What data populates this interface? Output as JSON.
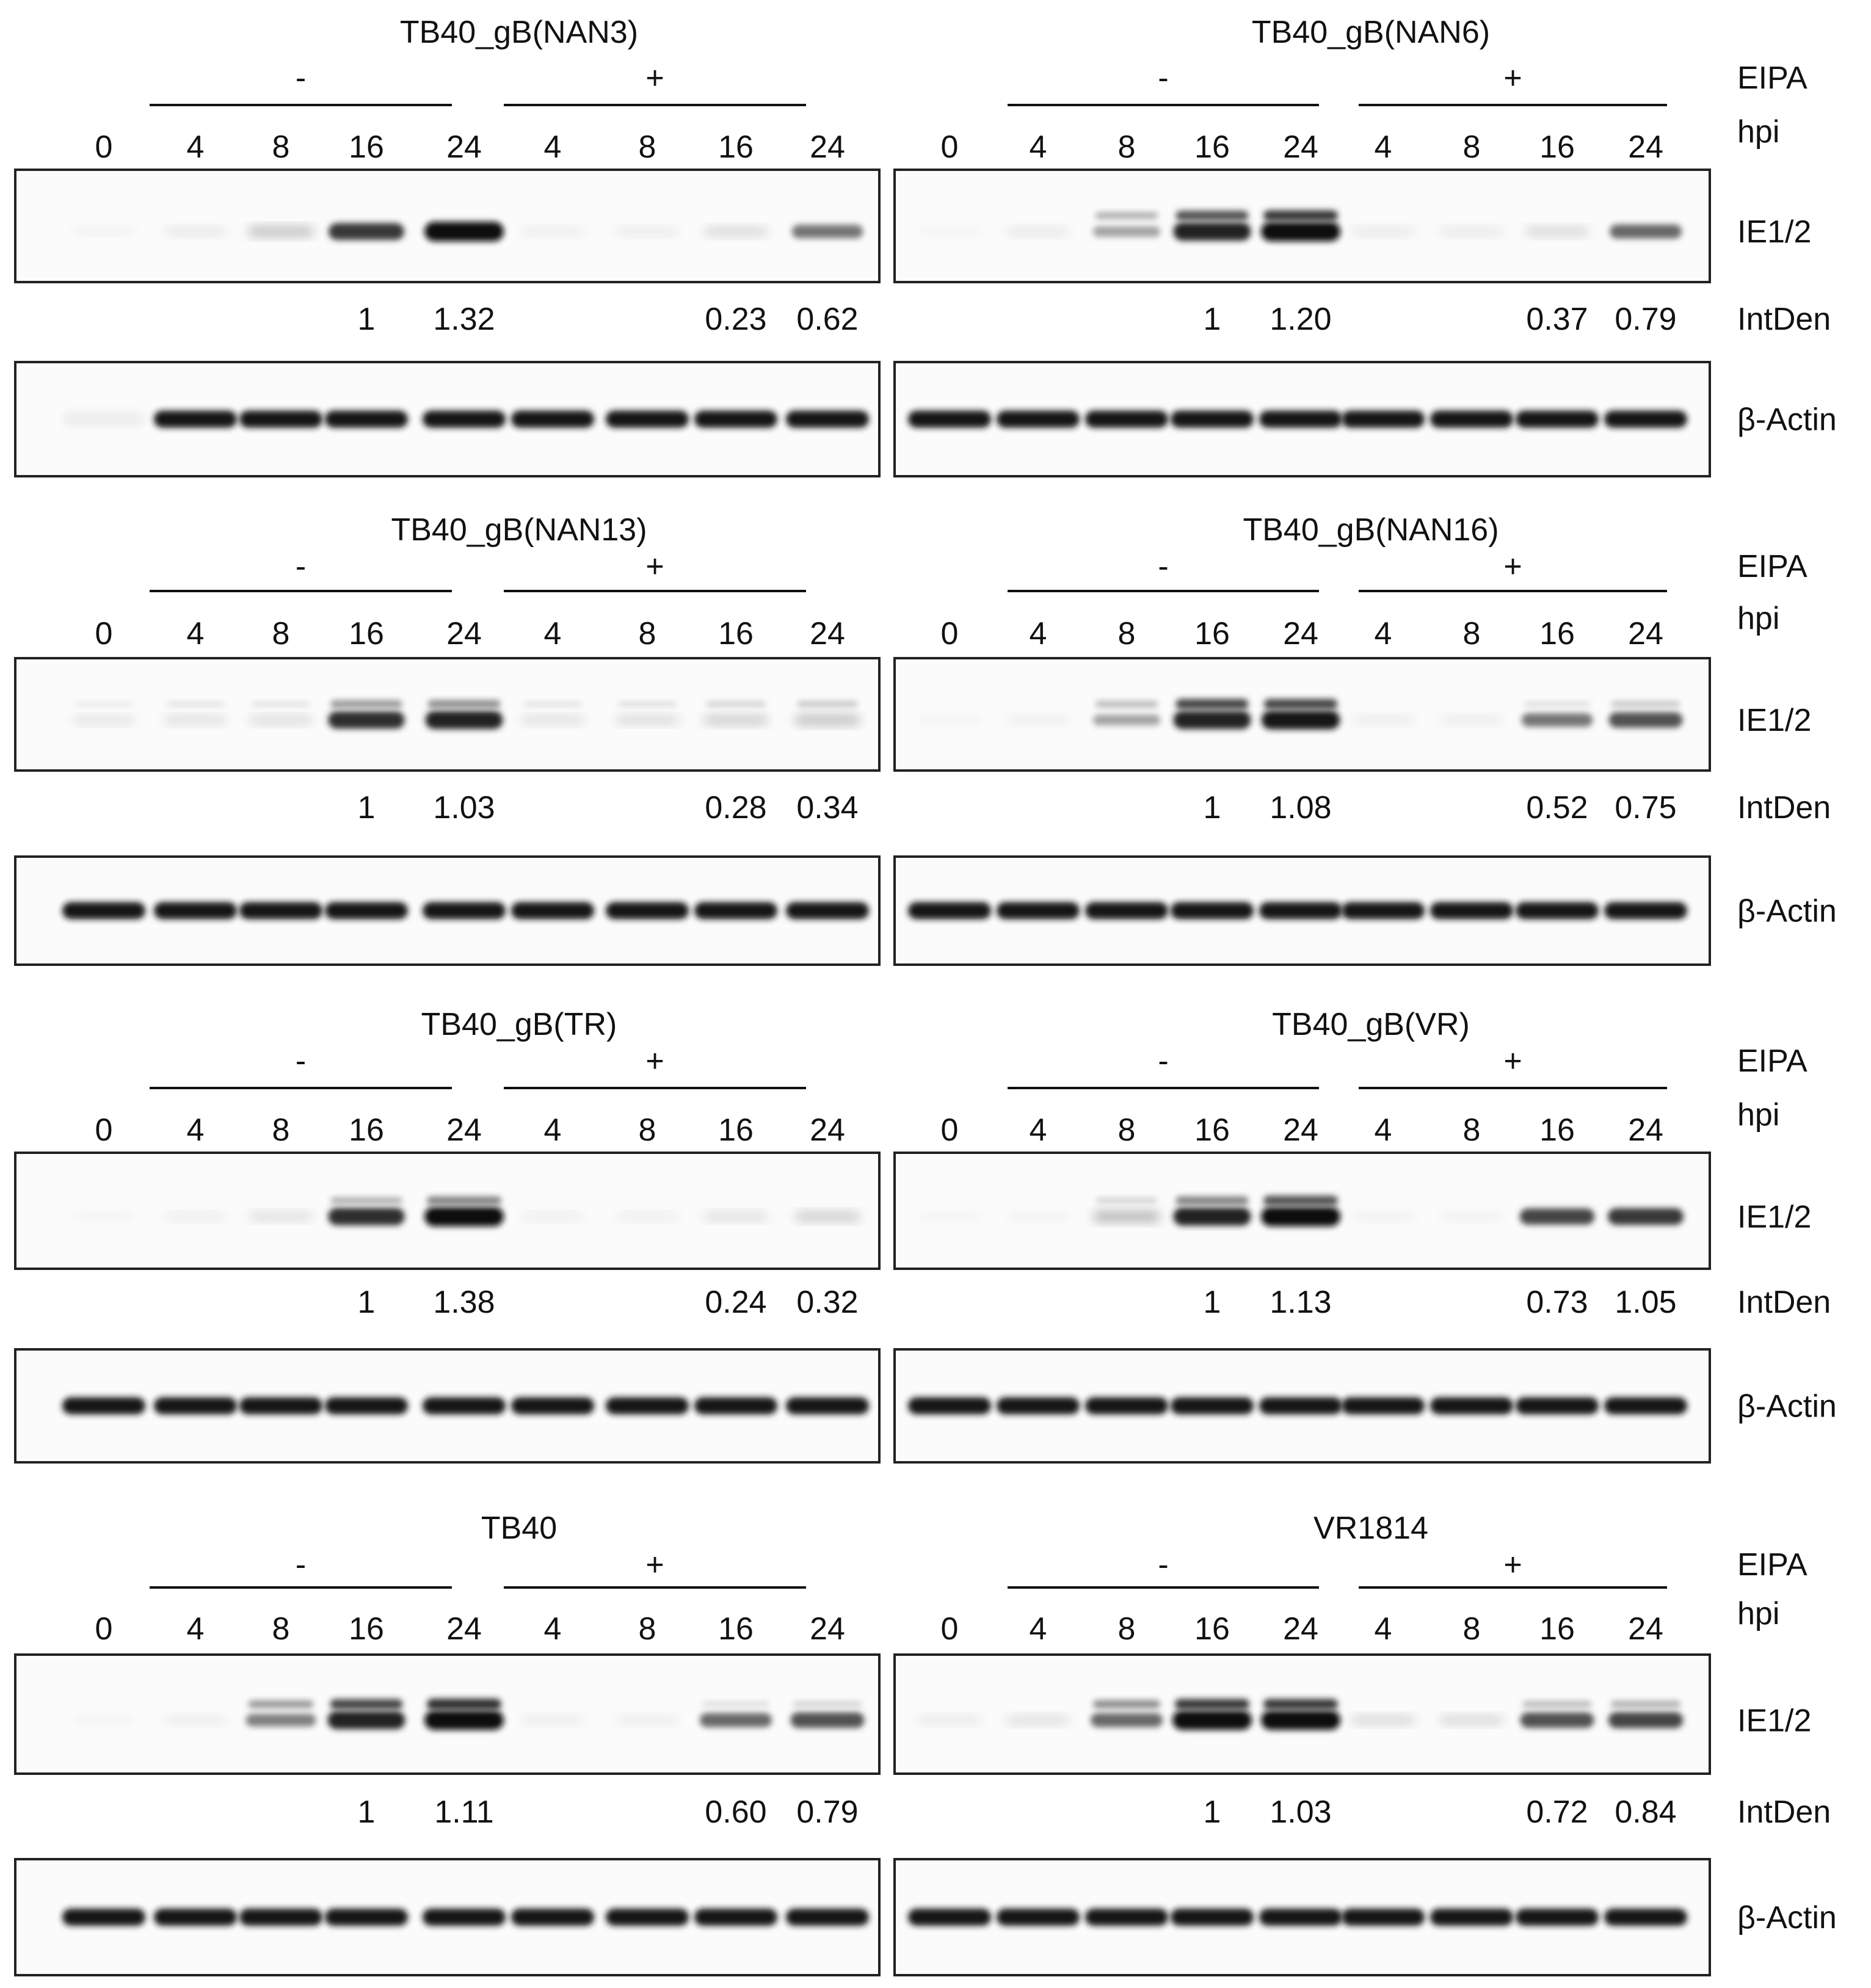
{
  "row_labels": {
    "treatment": "EIPA",
    "time": "hpi",
    "target": "IE1/2",
    "quant": "IntDen",
    "control": "β-Actin"
  },
  "treatment_signs": [
    "-",
    "+"
  ],
  "lane_labels": [
    "0",
    "4",
    "8",
    "16",
    "24",
    "4",
    "8",
    "16",
    "24"
  ],
  "panels": [
    {
      "title": "TB40_gB(NAN3)",
      "intden": [
        "",
        "",
        "",
        "1",
        "1.32",
        "",
        "",
        "0.23",
        "0.62"
      ],
      "ie_intensity": [
        0.03,
        0.08,
        0.25,
        0.8,
        1.0,
        0.06,
        0.07,
        0.15,
        0.55
      ],
      "ie_upper": [
        0,
        0,
        0,
        0,
        0,
        0,
        0,
        0,
        0
      ]
    },
    {
      "title": "TB40_gB(NAN6)",
      "intden": [
        "",
        "",
        "",
        "1",
        "1.20",
        "",
        "",
        "0.37",
        "0.79"
      ],
      "ie_intensity": [
        0.02,
        0.08,
        0.35,
        0.9,
        1.0,
        0.08,
        0.08,
        0.15,
        0.6
      ],
      "ie_upper": [
        0,
        0,
        0.3,
        0.7,
        0.8,
        0,
        0,
        0,
        0
      ]
    },
    {
      "title": "TB40_gB(NAN13)",
      "intden": [
        "",
        "",
        "",
        "1",
        "1.03",
        "",
        "",
        "0.28",
        "0.34"
      ],
      "ie_intensity": [
        0.1,
        0.12,
        0.13,
        0.85,
        0.9,
        0.12,
        0.14,
        0.2,
        0.25
      ],
      "ie_upper": [
        0.05,
        0.08,
        0.08,
        0.4,
        0.45,
        0.08,
        0.1,
        0.15,
        0.2
      ]
    },
    {
      "title": "TB40_gB(NAN16)",
      "intden": [
        "",
        "",
        "",
        "1",
        "1.08",
        "",
        "",
        "0.52",
        "0.75"
      ],
      "ie_intensity": [
        0.02,
        0.05,
        0.35,
        0.9,
        0.95,
        0.06,
        0.06,
        0.55,
        0.7
      ],
      "ie_upper": [
        0,
        0,
        0.25,
        0.75,
        0.75,
        0,
        0,
        0.1,
        0.2
      ]
    },
    {
      "title": "TB40_gB(TR)",
      "intden": [
        "",
        "",
        "",
        "1",
        "1.38",
        "",
        "",
        "0.24",
        "0.32"
      ],
      "ie_intensity": [
        0.02,
        0.05,
        0.12,
        0.85,
        1.0,
        0.05,
        0.05,
        0.12,
        0.2
      ],
      "ie_upper": [
        0,
        0,
        0,
        0.3,
        0.5,
        0,
        0,
        0,
        0
      ]
    },
    {
      "title": "TB40_gB(VR)",
      "intden": [
        "",
        "",
        "",
        "1",
        "1.13",
        "",
        "",
        "0.73",
        "1.05"
      ],
      "ie_intensity": [
        0.02,
        0.03,
        0.3,
        0.9,
        1.0,
        0.04,
        0.04,
        0.75,
        0.8
      ],
      "ie_upper": [
        0,
        0,
        0.15,
        0.5,
        0.7,
        0,
        0,
        0,
        0
      ]
    },
    {
      "title": "TB40",
      "intden": [
        "",
        "",
        "",
        "1",
        "1.11",
        "",
        "",
        "0.60",
        "0.79"
      ],
      "ie_intensity": [
        0.02,
        0.06,
        0.5,
        0.9,
        1.0,
        0.06,
        0.06,
        0.6,
        0.7
      ],
      "ie_upper": [
        0,
        0,
        0.4,
        0.75,
        0.85,
        0,
        0,
        0.1,
        0.15
      ]
    },
    {
      "title": "VR1814",
      "intden": [
        "",
        "",
        "",
        "1",
        "1.03",
        "",
        "",
        "0.72",
        "0.84"
      ],
      "ie_intensity": [
        0.08,
        0.12,
        0.6,
        1.0,
        1.0,
        0.15,
        0.15,
        0.7,
        0.75
      ],
      "ie_upper": [
        0,
        0,
        0.45,
        0.8,
        0.8,
        0,
        0,
        0.25,
        0.3
      ]
    }
  ]
}
